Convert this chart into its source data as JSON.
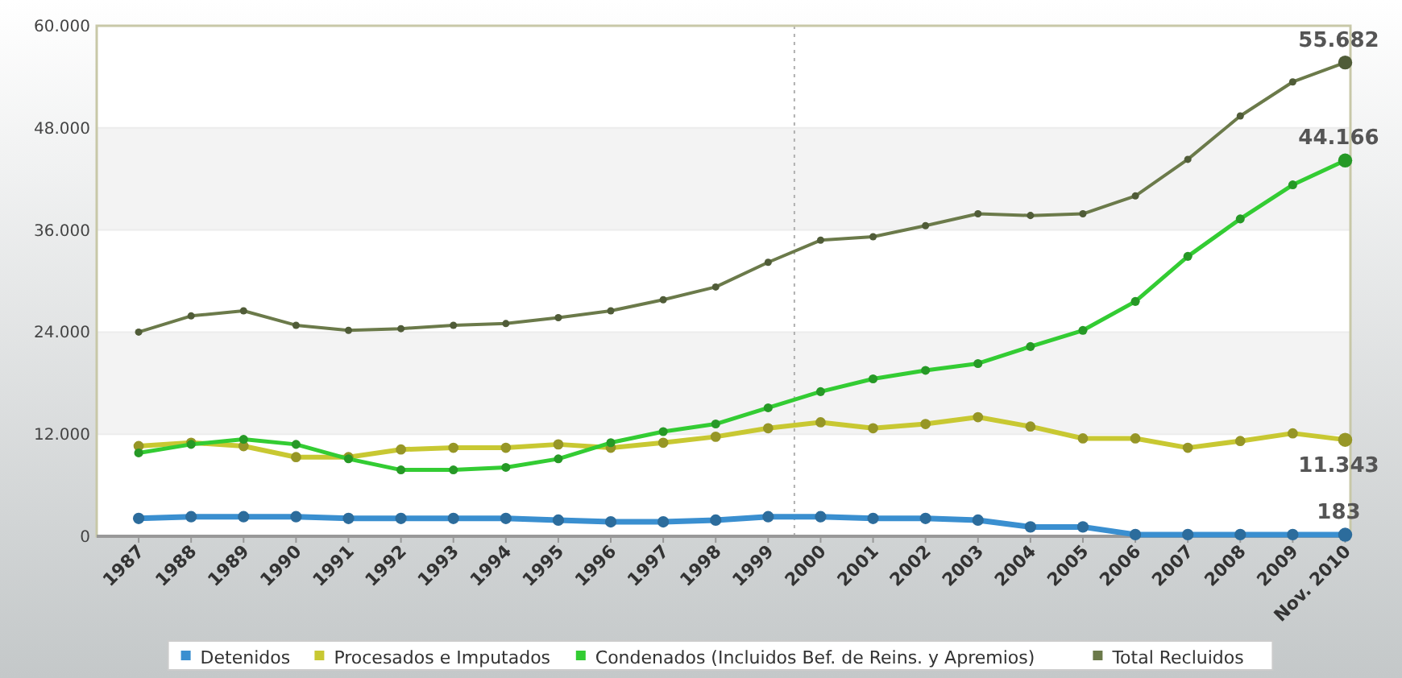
{
  "chart_data": {
    "type": "line",
    "x": [
      1987,
      1988,
      1989,
      1990,
      1991,
      1992,
      1993,
      1994,
      1995,
      1996,
      1997,
      1998,
      1999,
      2000,
      2001,
      2002,
      2003,
      2004,
      2005,
      2006,
      2007,
      2008,
      2009,
      2010
    ],
    "xlim": [
      1986.2,
      2010.1
    ],
    "xticks": [
      1987,
      1988,
      1989,
      1990,
      1991,
      1992,
      1993,
      1994,
      1995,
      1996,
      1997,
      1998,
      1999,
      2000,
      2001,
      2002,
      2003,
      2004,
      2005,
      2006,
      2007,
      2008,
      2009,
      {
        "value": 2010,
        "label": "Nov. 2010"
      }
    ],
    "ylim": [
      0,
      60000
    ],
    "yticks": [
      {
        "value": 0,
        "label": "0"
      },
      {
        "value": 12000,
        "label": "12.000"
      },
      {
        "value": 24000,
        "label": "24.000"
      },
      {
        "value": 36000,
        "label": "36.000"
      },
      {
        "value": 48000,
        "label": "48.000"
      },
      {
        "value": 60000,
        "label": "60.000"
      }
    ],
    "grid": "y",
    "legend": "bottom",
    "marker": "circle",
    "line_style": "solid",
    "ref_lines": [
      {
        "axis": "x",
        "value": 1999.5,
        "color": "#b0b0b0",
        "line_style": "dotted"
      }
    ],
    "series": [
      {
        "name": "Detenidos",
        "color": "#3a8fd0",
        "values": [
          2100,
          2300,
          2300,
          2300,
          2100,
          2100,
          2100,
          2100,
          1900,
          1700,
          1700,
          1900,
          2300,
          2300,
          2100,
          2100,
          1900,
          1100,
          1100,
          200,
          200,
          200,
          200,
          183
        ],
        "value_labels": [
          null,
          null,
          null,
          null,
          null,
          null,
          null,
          null,
          null,
          null,
          null,
          null,
          null,
          null,
          null,
          null,
          null,
          null,
          null,
          null,
          null,
          null,
          null,
          "183"
        ]
      },
      {
        "name": "Procesados e Imputados",
        "color": "#c8c832",
        "values": [
          10600,
          11000,
          10600,
          9300,
          9300,
          10200,
          10400,
          10400,
          10800,
          10400,
          11000,
          11700,
          12700,
          13400,
          12700,
          13200,
          14000,
          12900,
          11500,
          11500,
          10400,
          11200,
          12100,
          11343
        ],
        "value_labels": [
          null,
          null,
          null,
          null,
          null,
          null,
          null,
          null,
          null,
          null,
          null,
          null,
          null,
          null,
          null,
          null,
          null,
          null,
          null,
          null,
          null,
          null,
          null,
          "11.343"
        ]
      },
      {
        "name": "Condenados (Incluidos Bef. de Reins. y Apremios)",
        "color": "#33cc33",
        "values": [
          9800,
          10800,
          11400,
          10800,
          9100,
          7800,
          7800,
          8100,
          9100,
          11000,
          12300,
          13200,
          15100,
          17000,
          18500,
          19500,
          20300,
          22300,
          24200,
          27600,
          32900,
          37300,
          41300,
          44166
        ],
        "value_labels": [
          null,
          null,
          null,
          null,
          null,
          null,
          null,
          null,
          null,
          null,
          null,
          null,
          null,
          null,
          null,
          null,
          null,
          null,
          null,
          null,
          null,
          null,
          null,
          "44.166"
        ]
      },
      {
        "name": "Total Recluidos",
        "color": "#6b7a4a",
        "values": [
          24000,
          25900,
          26500,
          24800,
          24200,
          24400,
          24800,
          25000,
          25700,
          26500,
          27800,
          29300,
          32200,
          34800,
          35200,
          36500,
          37900,
          37700,
          37900,
          40000,
          44300,
          49400,
          53400,
          55682
        ],
        "value_labels": [
          null,
          null,
          null,
          null,
          null,
          null,
          null,
          null,
          null,
          null,
          null,
          null,
          null,
          null,
          null,
          null,
          null,
          null,
          null,
          null,
          null,
          null,
          null,
          "55.682"
        ]
      }
    ]
  }
}
